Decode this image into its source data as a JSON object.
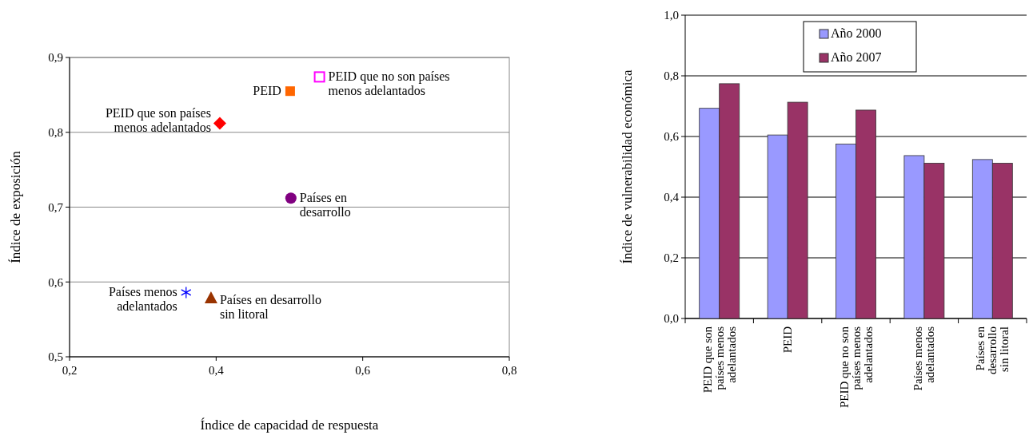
{
  "chart_data": [
    {
      "type": "scatter",
      "xlabel": "Índice de capacidad de respuesta",
      "ylabel": "Índice de exposición",
      "xlim": [
        0.2,
        0.8
      ],
      "xticks": [
        {
          "value": 0.2,
          "label": "0,2"
        },
        {
          "value": 0.4,
          "label": "0,4"
        },
        {
          "value": 0.6,
          "label": "0,6"
        },
        {
          "value": 0.8,
          "label": "0,8"
        }
      ],
      "ylim": [
        0.5,
        0.9
      ],
      "yticks": [
        {
          "value": 0.5,
          "label": "0,5"
        },
        {
          "value": 0.6,
          "label": "0,6"
        },
        {
          "value": 0.7,
          "label": "0,7"
        },
        {
          "value": 0.8,
          "label": "0,8"
        },
        {
          "value": 0.9,
          "label": "0,9"
        }
      ],
      "grid": "y",
      "series": [
        {
          "name": "PEID que no son países\nmenos adelantados",
          "color": "#ff00ff",
          "marker": "square",
          "x": [
            0.541
          ],
          "values": [
            0.874
          ]
        },
        {
          "name": "PEID",
          "color": "#ff6600",
          "marker": "square",
          "x": [
            0.501
          ],
          "values": [
            0.855
          ]
        },
        {
          "name": "PEID que son países\nmenos adelantados",
          "color": "#ff0000",
          "marker": "diamond",
          "x": [
            0.405
          ],
          "values": [
            0.812
          ]
        },
        {
          "name": "Países en\ndesarrollo",
          "color": "#800080",
          "marker": "circle",
          "x": [
            0.502
          ],
          "values": [
            0.712
          ]
        },
        {
          "name": "Países menos\nadelantados",
          "color": "#0000ff",
          "marker": "cross",
          "x": [
            0.359
          ],
          "values": [
            0.586
          ]
        },
        {
          "name": "Países en desarrollo\nsin litoral",
          "color": "#993300",
          "marker": "triangle",
          "x": [
            0.393
          ],
          "values": [
            0.579
          ]
        }
      ]
    },
    {
      "type": "bar",
      "ylabel": "Índice de vulnerabilidad económica",
      "categories": [
        "PEID que son\npaíses menos\nadelantados",
        "PEID",
        "PEID que no son\npaíses menos\nadelantados",
        "Países menos\nadelantados",
        "Países en\ndesarrollo\nsin litoral"
      ],
      "ylim": [
        0,
        1
      ],
      "yticks": [
        {
          "value": 0,
          "label": "0,0"
        },
        {
          "value": 0.2,
          "label": "0,2"
        },
        {
          "value": 0.4,
          "label": "0,4"
        },
        {
          "value": 0.6,
          "label": "0,6"
        },
        {
          "value": 0.8,
          "label": "0,8"
        },
        {
          "value": 1,
          "label": "1,0"
        }
      ],
      "grid": "y",
      "legend": "top",
      "series": [
        {
          "name": "Año 2000",
          "color": "#9999ff",
          "values": [
            0.693,
            0.605,
            0.575,
            0.537,
            0.524
          ]
        },
        {
          "name": "Año 2007",
          "color": "#993366",
          "values": [
            0.774,
            0.713,
            0.687,
            0.512,
            0.512
          ]
        }
      ]
    }
  ]
}
